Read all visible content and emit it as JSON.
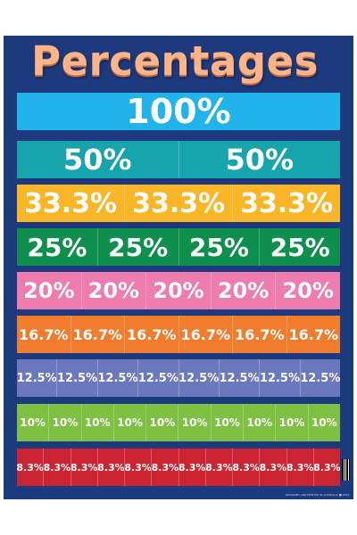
{
  "title": "Percentages",
  "footnote": "DESIGNED AND PRINTED IN AUSTRALIA ■ 6819",
  "rows": [
    {
      "label": "100%",
      "count": 1,
      "color": "#20b4ea"
    },
    {
      "label": "50%",
      "count": 2,
      "color": "#17a4ad"
    },
    {
      "label": "33.3%",
      "count": 3,
      "color": "#fbb627"
    },
    {
      "label": "25%",
      "count": 4,
      "color": "#0f8f4e"
    },
    {
      "label": "20%",
      "count": 5,
      "color": "#ee7cae"
    },
    {
      "label": "16.7%",
      "count": 6,
      "color": "#f27c2e"
    },
    {
      "label": "12.5%",
      "count": 8,
      "color": "#6c78bd"
    },
    {
      "label": "10%",
      "count": 10,
      "color": "#7ec042"
    },
    {
      "label": "8.3%",
      "count": 12,
      "color": "#c9242f"
    }
  ]
}
